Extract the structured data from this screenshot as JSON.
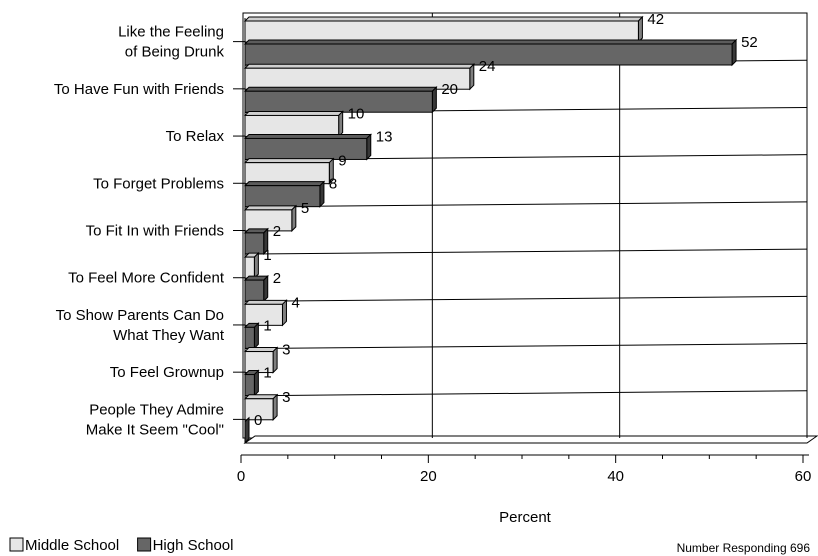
{
  "chart_data": {
    "type": "bar",
    "orientation": "horizontal",
    "title": "",
    "xlabel": "Percent",
    "ylabel": "",
    "xlim": [
      0,
      60
    ],
    "xticks": [
      0,
      20,
      40,
      60
    ],
    "grid": true,
    "legend_position": "bottom-left",
    "categories": [
      [
        "Like the Feeling",
        "of Being Drunk"
      ],
      [
        "To Have Fun with Friends"
      ],
      [
        "To Relax"
      ],
      [
        "To Forget Problems"
      ],
      [
        "To Fit In with Friends"
      ],
      [
        "To Feel More Confident"
      ],
      [
        "To Show Parents Can Do",
        "What They Want"
      ],
      [
        "To Feel Grownup"
      ],
      [
        "People They Admire",
        "Make It Seem \"Cool\""
      ]
    ],
    "series": [
      {
        "name": "Middle School",
        "color": "#e6e6e6",
        "values": [
          42,
          24,
          10,
          9,
          5,
          1,
          4,
          3,
          3
        ]
      },
      {
        "name": "High School",
        "color": "#666666",
        "values": [
          52,
          20,
          13,
          8,
          2,
          2,
          1,
          1,
          0
        ]
      }
    ],
    "note": "Number Responding 696"
  }
}
